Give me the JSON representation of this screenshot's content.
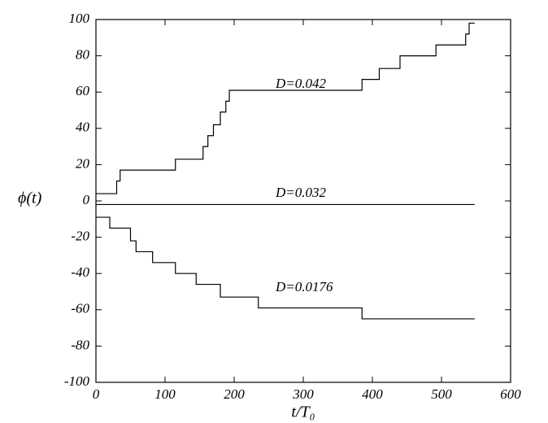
{
  "chart_data": {
    "type": "line",
    "x_label": "t/T₀",
    "y_label": "ϕ(t)",
    "xlim": [
      0,
      600
    ],
    "xticks": [
      0,
      100,
      200,
      300,
      400,
      500,
      600
    ],
    "ylim": [
      -100,
      100
    ],
    "yticks": [
      -100,
      -80,
      -60,
      -40,
      -20,
      0,
      20,
      40,
      60,
      80,
      100
    ],
    "grid": false,
    "series": [
      {
        "name": "D=0.042",
        "color": "#000000",
        "x": [
          0,
          30,
          30,
          35,
          35,
          115,
          115,
          155,
          155,
          162,
          162,
          170,
          170,
          180,
          180,
          188,
          188,
          193,
          193,
          385,
          385,
          410,
          410,
          440,
          440,
          492,
          492,
          535,
          535,
          540,
          540,
          548
        ],
        "values": [
          4,
          4,
          11,
          11,
          17,
          17,
          23,
          23,
          30,
          30,
          36,
          36,
          42,
          42,
          49,
          49,
          55,
          55,
          61,
          61,
          67,
          67,
          73,
          73,
          80,
          80,
          86,
          86,
          92,
          92,
          98,
          98
        ]
      },
      {
        "name": "D=0.032",
        "color": "#000000",
        "x": [
          0,
          548
        ],
        "values": [
          -2,
          -2
        ]
      },
      {
        "name": "D=0.0176",
        "color": "#000000",
        "x": [
          0,
          20,
          20,
          50,
          50,
          58,
          58,
          82,
          82,
          115,
          115,
          145,
          145,
          180,
          180,
          235,
          235,
          385,
          385,
          548
        ],
        "values": [
          -9,
          -9,
          -15,
          -15,
          -22,
          -22,
          -28,
          -28,
          -34,
          -34,
          -40,
          -40,
          -46,
          -46,
          -53,
          -53,
          -59,
          -59,
          -65,
          -65
        ]
      }
    ]
  }
}
